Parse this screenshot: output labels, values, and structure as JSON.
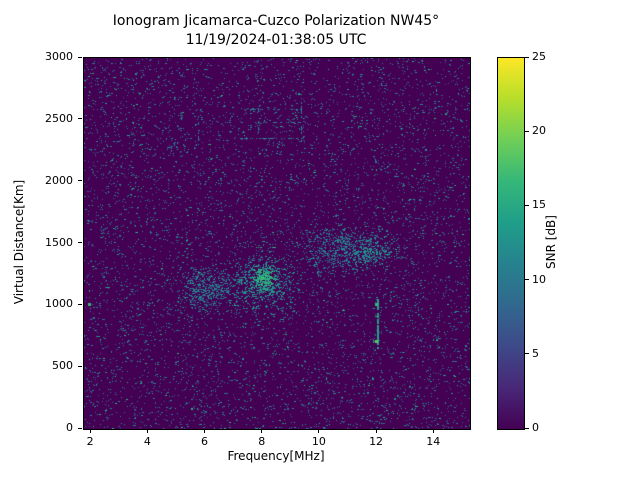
{
  "chart_data": {
    "type": "heatmap",
    "title": "Ionogram Jicamarca-Cuzco Polarization NW45°",
    "subtitle": "11/19/2024-01:38:05 UTC",
    "xlabel": "Frequency[MHz]",
    "ylabel": "Virtual Distance[Km]",
    "xlim": [
      1.75,
      15.25
    ],
    "ylim": [
      0,
      3000
    ],
    "xticks": [
      2,
      4,
      6,
      8,
      10,
      12,
      14
    ],
    "yticks": [
      0,
      500,
      1000,
      1500,
      2000,
      2500,
      3000
    ],
    "grid": false,
    "legend": "none",
    "colorbar": {
      "label": "SNR [dB]",
      "min": 0,
      "max": 25,
      "ticks": [
        0,
        5,
        10,
        15,
        20,
        25
      ],
      "colormap": "viridis",
      "stops": [
        "#440154",
        "#482878",
        "#3e4989",
        "#31688e",
        "#26828e",
        "#1f9e89",
        "#35b779",
        "#6ece58",
        "#b5de2b",
        "#fde725"
      ]
    },
    "background_snr_color": "#440154",
    "noise": {
      "seed": 42,
      "base_count": 7200,
      "palette": [
        {
          "color": "#3b528b",
          "weight": 0.18
        },
        {
          "color": "#2d708e",
          "weight": 0.27
        },
        {
          "color": "#26828e",
          "weight": 0.3
        },
        {
          "color": "#1f968b",
          "weight": 0.17
        },
        {
          "color": "#2ab07f",
          "weight": 0.08
        }
      ]
    },
    "clusters": [
      {
        "freq": 6.0,
        "dist": 1130,
        "freq_sigma": 0.45,
        "dist_sigma": 85,
        "count": 450,
        "color": "#26828e"
      },
      {
        "freq": 8.0,
        "dist": 1190,
        "freq_sigma": 0.55,
        "dist_sigma": 110,
        "count": 650,
        "color": "#21918c"
      },
      {
        "freq": 8.05,
        "dist": 1210,
        "freq_sigma": 0.18,
        "dist_sigma": 45,
        "count": 220,
        "color": "#2cb17e"
      },
      {
        "freq": 10.9,
        "dist": 1450,
        "freq_sigma": 0.75,
        "dist_sigma": 90,
        "count": 600,
        "color": "#26828e"
      },
      {
        "freq": 11.8,
        "dist": 1430,
        "freq_sigma": 0.35,
        "dist_sigma": 60,
        "count": 160,
        "color": "#21918c"
      }
    ],
    "segments": [
      {
        "type": "v",
        "freq": 12.0,
        "dist_from": 650,
        "dist_to": 1060,
        "color": "#1fa187",
        "density": 0.8,
        "width": 2
      },
      {
        "type": "h",
        "dist": 1465,
        "freq_from": 7.7,
        "freq_to": 8.45,
        "color": "#2cb17e",
        "density": 0.7,
        "width": 1
      },
      {
        "type": "h",
        "dist": 2580,
        "freq_from": 7.3,
        "freq_to": 9.4,
        "color": "#26828e",
        "density": 0.4,
        "width": 1
      },
      {
        "type": "h",
        "dist": 2480,
        "freq_from": 6.5,
        "freq_to": 9.6,
        "color": "#26828e",
        "density": 0.35,
        "width": 1
      },
      {
        "type": "h",
        "dist": 2350,
        "freq_from": 7.0,
        "freq_to": 9.4,
        "color": "#26828e",
        "density": 0.35,
        "width": 1
      },
      {
        "type": "v",
        "freq": 7.85,
        "dist_from": 2300,
        "dist_to": 2650,
        "color": "#26828e",
        "density": 0.35,
        "width": 1
      },
      {
        "type": "v",
        "freq": 9.35,
        "dist_from": 2300,
        "dist_to": 2640,
        "color": "#26828e",
        "density": 0.3,
        "width": 1
      },
      {
        "type": "h",
        "dist": 690,
        "freq_from": 7.5,
        "freq_to": 9.2,
        "color": "#2d708e",
        "density": 0.3,
        "width": 1
      },
      {
        "type": "v",
        "freq": 5.75,
        "dist_from": 2330,
        "dist_to": 2560,
        "color": "#2d708e",
        "density": 0.3,
        "width": 1
      }
    ],
    "bright_points": [
      {
        "freq": 12.0,
        "dist": 700,
        "color": "#5ec962",
        "size": 3
      },
      {
        "freq": 12.0,
        "dist": 1005,
        "color": "#35b779",
        "size": 3
      },
      {
        "freq": 1.95,
        "dist": 1000,
        "color": "#35b779",
        "size": 3
      },
      {
        "freq": 8.0,
        "dist": 1215,
        "color": "#3dbc74",
        "size": 3
      }
    ]
  }
}
